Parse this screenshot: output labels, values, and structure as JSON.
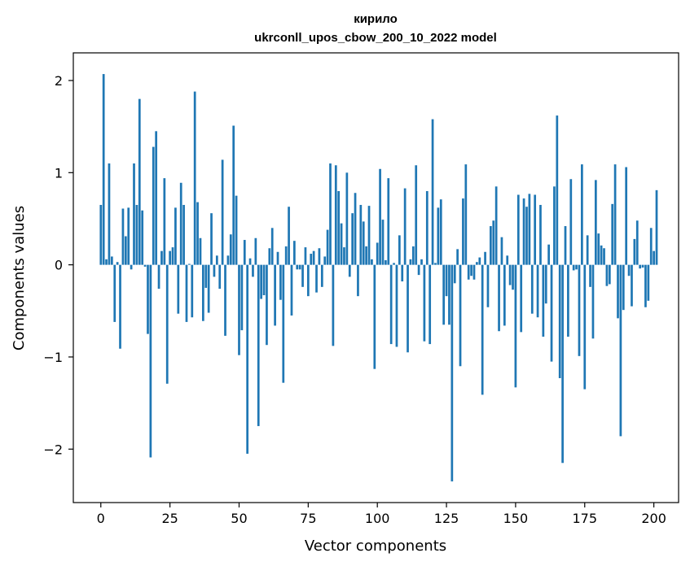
{
  "chart_data": {
    "type": "bar",
    "title": "кирило",
    "subtitle": "ukrconll_upos_cbow_200_10_2022 model",
    "xlabel": "Vector components",
    "ylabel": "Components values",
    "xlim": [
      -9.95,
      208.95
    ],
    "ylim": [
      -2.58,
      2.3
    ],
    "xticks": [
      0,
      25,
      50,
      75,
      100,
      125,
      150,
      175,
      200
    ],
    "yticks": [
      -2,
      -1,
      0,
      1,
      2
    ],
    "ytick_labels": [
      "−2",
      "−1",
      "0",
      "1",
      "2"
    ],
    "grid": false,
    "bar_color": "#1f77b4",
    "values": [
      0.65,
      2.07,
      0.06,
      1.1,
      0.09,
      -0.62,
      0.03,
      -0.91,
      0.61,
      0.31,
      0.62,
      -0.05,
      1.1,
      0.65,
      1.8,
      0.59,
      -0.02,
      -0.75,
      -2.09,
      1.28,
      1.45,
      -0.26,
      0.15,
      0.94,
      -1.29,
      0.15,
      0.19,
      0.62,
      -0.53,
      0.89,
      0.65,
      -0.62,
      0.01,
      -0.57,
      1.88,
      0.68,
      0.29,
      -0.61,
      -0.25,
      -0.52,
      0.56,
      -0.13,
      0.1,
      -0.26,
      1.14,
      -0.77,
      0.1,
      0.33,
      1.51,
      0.75,
      -0.98,
      -0.71,
      0.27,
      -2.05,
      0.07,
      -0.13,
      0.29,
      -1.75,
      -0.37,
      -0.33,
      -0.87,
      0.18,
      0.4,
      -0.66,
      0.14,
      -0.38,
      -1.28,
      0.2,
      0.63,
      -0.55,
      0.26,
      -0.05,
      -0.05,
      -0.24,
      0.19,
      -0.34,
      0.12,
      0.15,
      -0.3,
      0.18,
      -0.24,
      0.09,
      0.38,
      1.1,
      -0.88,
      1.08,
      0.8,
      0.45,
      0.19,
      1.0,
      -0.13,
      0.56,
      0.78,
      -0.34,
      0.65,
      0.47,
      0.2,
      0.64,
      0.06,
      -1.13,
      0.24,
      1.04,
      0.49,
      0.05,
      0.94,
      -0.86,
      0.02,
      -0.89,
      0.32,
      -0.18,
      0.83,
      -0.95,
      0.06,
      0.2,
      1.08,
      -0.11,
      0.06,
      -0.83,
      0.8,
      -0.86,
      1.58,
      0.02,
      0.62,
      0.71,
      -0.65,
      -0.34,
      -0.65,
      -2.35,
      -0.2,
      0.17,
      -1.1,
      0.72,
      1.09,
      -0.16,
      -0.12,
      -0.16,
      0.03,
      0.08,
      -1.41,
      0.14,
      -0.46,
      0.42,
      0.48,
      0.85,
      -0.72,
      0.3,
      -0.66,
      0.1,
      -0.22,
      -0.27,
      -1.33,
      0.76,
      -0.73,
      0.72,
      0.63,
      0.77,
      -0.53,
      0.76,
      -0.57,
      0.65,
      -0.78,
      -0.42,
      0.22,
      -1.05,
      0.85,
      1.62,
      -1.23,
      -2.15,
      0.42,
      -0.78,
      0.93,
      -0.06,
      -0.05,
      -0.99,
      1.09,
      -1.35,
      0.32,
      -0.24,
      -0.8,
      0.92,
      0.34,
      0.21,
      0.18,
      -0.23,
      -0.21,
      0.66,
      1.09,
      -0.58,
      -1.86,
      -0.49,
      1.06,
      -0.12,
      -0.45,
      0.28,
      0.48,
      -0.04,
      -0.03,
      -0.46,
      -0.39,
      0.4,
      0.15,
      0.81
    ]
  }
}
